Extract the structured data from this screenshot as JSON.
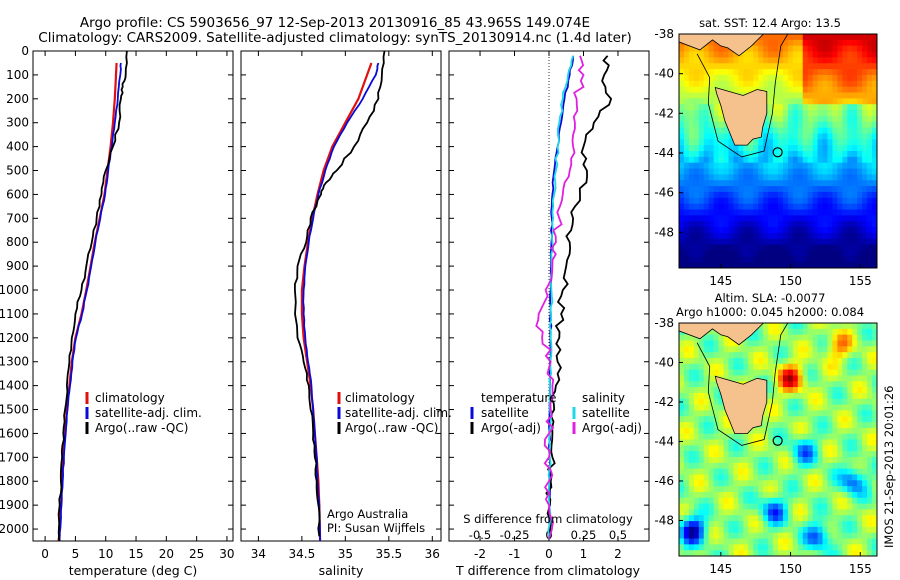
{
  "header": {
    "line1": "Argo profile: CS 5903656_97 12-Sep-2013 20130916_85 43.965S 149.074E",
    "line2": "Climatology: CARS2009. Satellite-adjusted climatology: synTS_20130914.nc (1.4d later)"
  },
  "colors": {
    "climatology": "#e01010",
    "satellite": "#0a0ad8",
    "argo": "#000000",
    "sal_satellite": "#20d8e8",
    "sal_argo": "#e020e0",
    "land": "#f5c28e"
  },
  "panels": {
    "temperature": {
      "xlabel": "temperature (deg C)",
      "legend": [
        "climatology",
        "satellite-adj. clim.",
        "Argo(..raw -QC)"
      ]
    },
    "salinity": {
      "xlabel": "salinity",
      "legend": [
        "climatology",
        "satellite-adj. clim.",
        "Argo(..raw -QC)"
      ],
      "note1": "Argo Australia",
      "note2": "PI: Susan Wijffels"
    },
    "difference": {
      "xlabel": "T difference from climatology",
      "top_label": "S difference from climatology",
      "legend_temp_title": "temperature",
      "legend_sal_title": "salinity",
      "legend_temp": [
        "satellite",
        "Argo(-adj)"
      ],
      "legend_sal": [
        "satellite",
        "Argo(-adj)"
      ]
    },
    "sst_map": {
      "title": "sat. SST: 12.4  Argo: 13.5"
    },
    "sla_map": {
      "title1": "Altim. SLA: -0.0077",
      "title2": "Argo h1000: 0.045 h2000: 0.084",
      "side_text": "IMOS 21-Sep-2013 20:01:26"
    }
  },
  "chart_data": [
    {
      "type": "line",
      "panel": "temperature",
      "xlabel": "temperature (deg C)",
      "xlim": [
        -2,
        31
      ],
      "ylim": [
        2050,
        0
      ],
      "xticks": [
        0,
        5,
        10,
        15,
        20,
        25,
        30
      ],
      "yticks": [
        0,
        100,
        200,
        300,
        400,
        500,
        600,
        700,
        800,
        900,
        1000,
        1100,
        1200,
        1300,
        1400,
        1500,
        1600,
        1700,
        1800,
        1900,
        2000
      ],
      "grid": false,
      "series": [
        {
          "name": "climatology",
          "x": [
            11.8,
            11.7,
            11.5,
            11.2,
            10.8,
            10.3,
            9.8,
            9.0,
            8.2,
            7.5,
            6.8,
            6.0,
            5.0,
            4.4,
            4.0,
            3.6,
            3.3,
            3.0,
            2.8,
            2.6,
            2.4,
            2.3,
            2.2
          ],
          "y": [
            50,
            100,
            200,
            300,
            400,
            500,
            600,
            700,
            800,
            900,
            1000,
            1100,
            1200,
            1300,
            1400,
            1500,
            1600,
            1700,
            1800,
            1900,
            2000,
            2030,
            2050
          ]
        },
        {
          "name": "satellite-adj. clim.",
          "x": [
            12.5,
            12.4,
            12.0,
            11.5,
            11.0,
            10.4,
            9.9,
            9.1,
            8.3,
            7.6,
            6.9,
            6.1,
            5.1,
            4.5,
            4.1,
            3.7,
            3.4,
            3.1,
            2.9,
            2.7,
            2.5,
            2.4
          ],
          "y": [
            50,
            100,
            200,
            300,
            400,
            500,
            600,
            700,
            800,
            900,
            1000,
            1100,
            1200,
            1300,
            1400,
            1500,
            1600,
            1700,
            1800,
            1900,
            2000,
            2050
          ]
        },
        {
          "name": "Argo(..raw -QC)",
          "x": [
            13.5,
            13.3,
            12.8,
            12.5,
            12.2,
            11.2,
            10.0,
            9.3,
            8.5,
            7.7,
            6.8,
            6.0,
            5.0,
            4.4,
            4.0,
            3.6,
            3.3,
            3.0,
            2.8,
            2.6,
            2.4,
            2.3
          ],
          "y": [
            0,
            100,
            150,
            200,
            300,
            400,
            500,
            600,
            700,
            800,
            900,
            1000,
            1100,
            1200,
            1300,
            1400,
            1500,
            1600,
            1700,
            1800,
            1900,
            2050
          ]
        }
      ]
    },
    {
      "type": "line",
      "panel": "salinity",
      "xlabel": "salinity",
      "xlim": [
        33.8,
        36.1
      ],
      "ylim": [
        2050,
        0
      ],
      "xticks": [
        34,
        34.5,
        35,
        35.5,
        36
      ],
      "grid": false,
      "series": [
        {
          "name": "climatology",
          "x": [
            35.3,
            35.25,
            35.15,
            35.0,
            34.85,
            34.75,
            34.68,
            34.62,
            34.57,
            34.53,
            34.5,
            34.5,
            34.52,
            34.56,
            34.6,
            34.63,
            34.65,
            34.67,
            34.69,
            34.7,
            34.71
          ],
          "y": [
            50,
            100,
            200,
            300,
            400,
            500,
            600,
            700,
            800,
            900,
            1000,
            1100,
            1200,
            1300,
            1400,
            1500,
            1600,
            1700,
            1800,
            1900,
            2050
          ]
        },
        {
          "name": "satellite-adj. clim.",
          "x": [
            35.38,
            35.35,
            35.2,
            35.02,
            34.87,
            34.77,
            34.69,
            34.63,
            34.58,
            34.54,
            34.52,
            34.52,
            34.54,
            34.57,
            34.61,
            34.63,
            34.65,
            34.67,
            34.68,
            34.7,
            34.71
          ],
          "y": [
            50,
            100,
            200,
            300,
            400,
            500,
            600,
            700,
            800,
            900,
            1000,
            1100,
            1200,
            1300,
            1400,
            1500,
            1600,
            1700,
            1800,
            1900,
            2050
          ]
        },
        {
          "name": "Argo(..raw -QC)",
          "x": [
            35.45,
            35.42,
            35.38,
            35.25,
            35.1,
            34.9,
            34.78,
            34.72,
            34.6,
            34.55,
            34.45,
            34.42,
            34.45,
            34.52,
            34.58,
            34.6,
            34.63,
            34.65,
            34.67,
            34.69,
            34.7
          ],
          "y": [
            0,
            100,
            200,
            300,
            400,
            500,
            550,
            600,
            700,
            800,
            900,
            1000,
            1200,
            1300,
            1400,
            1500,
            1600,
            1700,
            1800,
            1900,
            2030
          ]
        }
      ]
    },
    {
      "type": "line",
      "panel": "difference",
      "xlabel": "T difference from climatology",
      "top_label": "S difference from climatology",
      "xlim": [
        -2.9,
        2.9
      ],
      "ylim": [
        2050,
        0
      ],
      "xticks": [
        -2,
        -1,
        0,
        1,
        2
      ],
      "top_ticks": [
        -0.5,
        -0.25,
        0,
        0.25,
        0.5
      ],
      "grid": false,
      "series": [
        {
          "name": "satellite",
          "variable": "temperature",
          "x": [
            0.7,
            0.6,
            0.45,
            0.35,
            0.25,
            0.15,
            0.1,
            0.08,
            0.07,
            0.06,
            0.05,
            0.05,
            0.04,
            0.03,
            0.03,
            0.02,
            0.02,
            0.02,
            0.01,
            0.01,
            0.0
          ],
          "y": [
            20,
            100,
            200,
            300,
            400,
            500,
            600,
            700,
            800,
            900,
            1000,
            1100,
            1200,
            1300,
            1400,
            1500,
            1600,
            1700,
            1800,
            1900,
            2040
          ]
        },
        {
          "name": "Argo(-adj)",
          "variable": "temperature",
          "x": [
            1.7,
            1.6,
            1.8,
            1.3,
            1.0,
            1.1,
            0.9,
            0.7,
            0.6,
            0.5,
            0.4,
            0.35,
            0.3,
            0.25,
            0.2,
            0.15,
            0.1,
            0.1,
            0.05,
            0.03,
            0.0
          ],
          "y": [
            20,
            100,
            200,
            300,
            400,
            500,
            600,
            700,
            800,
            900,
            1000,
            1100,
            1200,
            1300,
            1400,
            1500,
            1600,
            1700,
            1800,
            1900,
            2040
          ]
        },
        {
          "name": "satellite",
          "variable": "salinity",
          "x": [
            0.7,
            0.55,
            0.4,
            0.3,
            0.25,
            0.2,
            0.15,
            0.12,
            0.1,
            0.08,
            0.07,
            0.06,
            0.05,
            0.04,
            0.03,
            0.03,
            0.02,
            0.02,
            0.01,
            0.01,
            0.0
          ],
          "y": [
            20,
            100,
            200,
            300,
            400,
            500,
            600,
            700,
            800,
            900,
            1000,
            1100,
            1200,
            1300,
            1400,
            1500,
            1600,
            1700,
            1800,
            1900,
            2040
          ]
        },
        {
          "name": "Argo(-adj)",
          "variable": "salinity",
          "x": [
            0.9,
            1.0,
            0.8,
            0.75,
            0.7,
            0.6,
            0.4,
            0.3,
            0.2,
            0.1,
            -0.1,
            -0.3,
            -0.2,
            0.05,
            0.1,
            0.05,
            0.0,
            0.0,
            0.0,
            0.0,
            0.0
          ],
          "y": [
            20,
            100,
            200,
            300,
            400,
            500,
            600,
            700,
            800,
            900,
            1000,
            1100,
            1200,
            1300,
            1400,
            1500,
            1600,
            1700,
            1800,
            1900,
            2040
          ]
        }
      ]
    },
    {
      "type": "heatmap",
      "panel": "sst_map",
      "title": "sat. SST: 12.4  Argo: 13.5",
      "xlim": [
        142,
        156.2
      ],
      "ylim": [
        -49.8,
        -38
      ],
      "xticks": [
        145,
        150,
        155
      ],
      "yticks": [
        -38,
        -40,
        -42,
        -44,
        -46,
        -48
      ],
      "float_position": {
        "lon": 149.074,
        "lat": -43.965
      }
    },
    {
      "type": "heatmap",
      "panel": "sla_map",
      "title": "Altim. SLA: -0.0077  Argo h1000: 0.045 h2000: 0.084",
      "xlim": [
        142,
        156.2
      ],
      "ylim": [
        -49.8,
        -38
      ],
      "xticks": [
        145,
        150,
        155
      ],
      "yticks": [
        -38,
        -40,
        -42,
        -44,
        -46,
        -48
      ],
      "float_position": {
        "lon": 149.074,
        "lat": -43.965
      }
    }
  ]
}
